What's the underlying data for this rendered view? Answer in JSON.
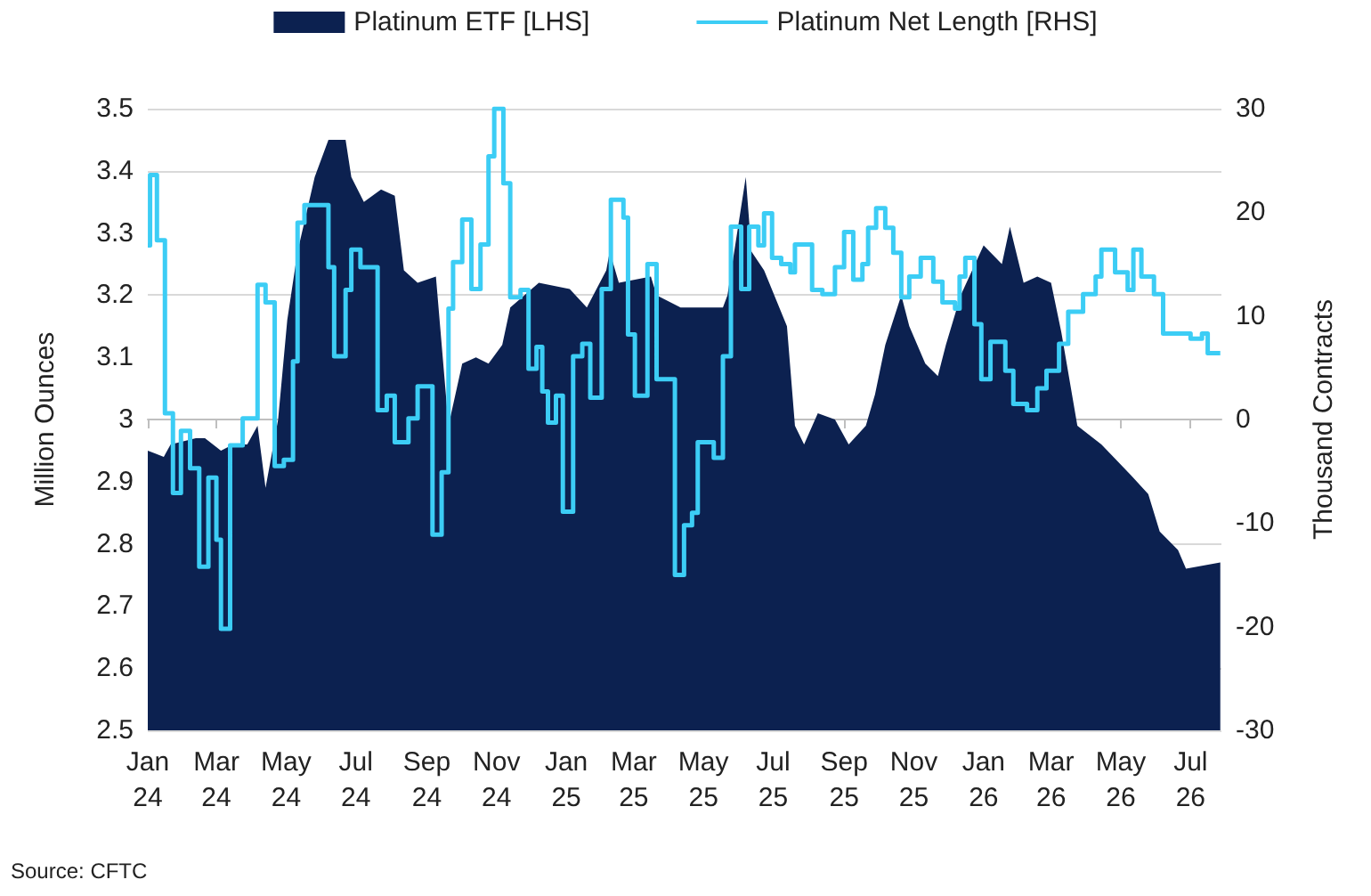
{
  "chart_data": {
    "type": "area",
    "ylabel": "Million Ounces",
    "y2label": "Thousand Contracts",
    "annotations": [
      "Source: CFTC"
    ],
    "xlim": [
      "2024-01-01",
      "2026-07-28"
    ],
    "xticks": [
      {
        "value": "2024-01-01",
        "label": "Jan 24"
      },
      {
        "value": "2024-03-01",
        "label": "Mar 24"
      },
      {
        "value": "2024-05-01",
        "label": "May 24"
      },
      {
        "value": "2024-07-01",
        "label": "Jul 24"
      },
      {
        "value": "2024-09-01",
        "label": "Sep 24"
      },
      {
        "value": "2024-11-01",
        "label": "Nov 24"
      },
      {
        "value": "2025-01-01",
        "label": "Jan 25"
      },
      {
        "value": "2025-03-01",
        "label": "Mar 25"
      },
      {
        "value": "2025-05-01",
        "label": "May 25"
      },
      {
        "value": "2025-07-01",
        "label": "Jul 25"
      },
      {
        "value": "2025-09-01",
        "label": "Sep 25"
      },
      {
        "value": "2025-11-01",
        "label": "Nov 25"
      },
      {
        "value": "2026-01-01",
        "label": "Jan 26"
      },
      {
        "value": "2026-03-01",
        "label": "Mar 26"
      },
      {
        "value": "2026-05-01",
        "label": "May 26"
      },
      {
        "value": "2026-07-01",
        "label": "Jul 26"
      }
    ],
    "ylim": [
      2.5,
      3.5
    ],
    "yticks": [
      2.5,
      2.6,
      2.7,
      2.8,
      2.9,
      3,
      3.1,
      3.2,
      3.3,
      3.4,
      3.5
    ],
    "y2lim": [
      -30,
      30
    ],
    "y2ticks": [
      -30,
      -20,
      -10,
      0,
      10,
      20,
      30
    ],
    "grid": "y",
    "legend": "top",
    "marker": "none",
    "line_style": "solid",
    "series": [
      {
        "name": "Platinum ETF [LHS]",
        "color": "#0c2150",
        "x": [
          "2024-01-01",
          "2024-01-15",
          "2024-01-21",
          "2024-02-12",
          "2024-02-20",
          "2024-03-05",
          "2024-03-16",
          "2024-03-28",
          "2024-04-06",
          "2024-04-13",
          "2024-04-24",
          "2024-05-02",
          "2024-05-11",
          "2024-05-26",
          "2024-06-07",
          "2024-06-22",
          "2024-06-27",
          "2024-07-08",
          "2024-07-23",
          "2024-08-04",
          "2024-08-12",
          "2024-08-24",
          "2024-09-09",
          "2024-09-20",
          "2024-10-02",
          "2024-10-14",
          "2024-10-25",
          "2024-11-06",
          "2024-11-13",
          "2024-12-08",
          "2025-01-04",
          "2025-01-19",
          "2025-02-05",
          "2025-02-08",
          "2025-02-16",
          "2025-03-16",
          "2025-03-21",
          "2025-04-11",
          "2025-05-18",
          "2025-05-22",
          "2025-06-07",
          "2025-06-12",
          "2025-06-23",
          "2025-07-13",
          "2025-07-20",
          "2025-07-28",
          "2025-08-09",
          "2025-08-24",
          "2025-09-05",
          "2025-09-20",
          "2025-09-28",
          "2025-10-07",
          "2025-10-21",
          "2025-10-28",
          "2025-11-11",
          "2025-11-22",
          "2025-11-29",
          "2025-12-12",
          "2025-12-22",
          "2026-01-01",
          "2026-01-17",
          "2026-01-24",
          "2026-02-05",
          "2026-02-17",
          "2026-03-01",
          "2026-03-10",
          "2026-03-24",
          "2026-04-14",
          "2026-05-10",
          "2026-05-25",
          "2026-06-04",
          "2026-06-20",
          "2026-06-27",
          "2026-07-27"
        ],
        "values": [
          2.95,
          2.94,
          2.96,
          2.97,
          2.97,
          2.95,
          2.96,
          2.96,
          2.99,
          2.89,
          3.0,
          3.16,
          3.27,
          3.39,
          3.45,
          3.45,
          3.39,
          3.35,
          3.37,
          3.36,
          3.24,
          3.22,
          3.23,
          2.99,
          3.09,
          3.1,
          3.09,
          3.12,
          3.18,
          3.22,
          3.21,
          3.18,
          3.24,
          3.27,
          3.22,
          3.23,
          3.2,
          3.18,
          3.18,
          3.2,
          3.39,
          3.27,
          3.24,
          3.15,
          2.99,
          2.96,
          3.01,
          3.0,
          2.96,
          2.99,
          3.04,
          3.12,
          3.2,
          3.15,
          3.09,
          3.07,
          3.12,
          3.2,
          3.24,
          3.28,
          3.25,
          3.31,
          3.22,
          3.23,
          3.22,
          3.14,
          2.99,
          2.96,
          2.91,
          2.88,
          2.82,
          2.79,
          2.76,
          2.77
        ]
      },
      {
        "name": "Platinum Net Length [RHS]",
        "type": "step",
        "axis": "y2",
        "color": "#3ccdf5",
        "x": [
          "2024-01-01",
          "2024-01-03",
          "2024-01-09",
          "2024-01-16",
          "2024-01-23",
          "2024-01-30",
          "2024-02-07",
          "2024-02-15",
          "2024-02-23",
          "2024-03-01",
          "2024-03-05",
          "2024-03-13",
          "2024-03-24",
          "2024-04-06",
          "2024-04-13",
          "2024-04-21",
          "2024-04-29",
          "2024-05-07",
          "2024-05-11",
          "2024-05-17",
          "2024-06-07",
          "2024-06-12",
          "2024-06-22",
          "2024-06-27",
          "2024-07-05",
          "2024-07-20",
          "2024-07-28",
          "2024-08-04",
          "2024-08-16",
          "2024-08-24",
          "2024-09-06",
          "2024-09-14",
          "2024-09-20",
          "2024-09-24",
          "2024-10-02",
          "2024-10-10",
          "2024-10-18",
          "2024-10-25",
          "2024-10-30",
          "2024-11-07",
          "2024-11-13",
          "2024-11-22",
          "2024-11-29",
          "2024-12-06",
          "2024-12-11",
          "2024-12-16",
          "2024-12-23",
          "2024-12-29",
          "2025-01-07",
          "2025-01-15",
          "2025-01-22",
          "2025-02-01",
          "2025-02-09",
          "2025-02-20",
          "2025-02-24",
          "2025-03-02",
          "2025-03-13",
          "2025-03-21",
          "2025-04-06",
          "2025-04-14",
          "2025-04-21",
          "2025-04-26",
          "2025-05-10",
          "2025-05-18",
          "2025-05-25",
          "2025-06-03",
          "2025-06-10",
          "2025-06-18",
          "2025-06-23",
          "2025-06-30",
          "2025-07-08",
          "2025-07-16",
          "2025-07-20",
          "2025-08-04",
          "2025-08-13",
          "2025-08-24",
          "2025-09-01",
          "2025-09-09",
          "2025-09-17",
          "2025-09-22",
          "2025-09-29",
          "2025-10-07",
          "2025-10-14",
          "2025-10-21",
          "2025-10-28",
          "2025-11-07",
          "2025-11-18",
          "2025-11-26",
          "2025-12-07",
          "2025-12-11",
          "2025-12-16",
          "2025-12-24",
          "2025-12-30",
          "2026-01-07",
          "2026-01-20",
          "2026-01-27",
          "2026-02-08",
          "2026-02-17",
          "2026-02-25",
          "2026-03-08",
          "2026-03-16",
          "2026-03-29",
          "2026-04-09",
          "2026-04-14",
          "2026-04-26",
          "2026-05-07",
          "2026-05-12",
          "2026-05-19",
          "2026-05-30",
          "2026-06-07",
          "2026-07-01",
          "2026-07-11",
          "2026-07-16",
          "2026-07-27"
        ],
        "values": [
          16.8,
          23.6,
          17.3,
          0.6,
          -7.1,
          -1.1,
          -4.7,
          -14.2,
          -5.6,
          -11.6,
          -20.2,
          -2.5,
          0.1,
          13.0,
          11.3,
          -4.5,
          -3.9,
          5.6,
          19.0,
          20.7,
          14.7,
          6.1,
          12.5,
          16.4,
          14.7,
          0.9,
          2.3,
          -2.2,
          0.1,
          3.2,
          -11.1,
          -5.1,
          10.7,
          15.2,
          19.3,
          12.6,
          16.9,
          25.4,
          30.0,
          22.8,
          11.8,
          12.5,
          4.9,
          7.0,
          2.7,
          -0.3,
          2.3,
          -8.9,
          6.1,
          7.3,
          2.1,
          12.6,
          21.2,
          19.5,
          8.2,
          2.3,
          15.0,
          3.9,
          -15.0,
          -10.2,
          -9.0,
          -2.2,
          -3.7,
          6.1,
          18.6,
          12.6,
          18.6,
          16.8,
          19.9,
          15.6,
          15.0,
          14.2,
          16.9,
          12.5,
          12.1,
          14.7,
          18.1,
          13.5,
          15.0,
          18.5,
          20.4,
          18.5,
          16.1,
          11.8,
          13.8,
          15.6,
          13.3,
          11.3,
          10.7,
          13.8,
          15.6,
          9.2,
          3.9,
          7.5,
          4.7,
          1.5,
          0.9,
          3.0,
          4.7,
          7.3,
          10.4,
          12.1,
          13.8,
          16.4,
          14.2,
          12.5,
          16.4,
          13.8,
          12.1,
          8.3,
          7.8,
          8.3,
          6.4,
          6.4
        ]
      }
    ]
  }
}
